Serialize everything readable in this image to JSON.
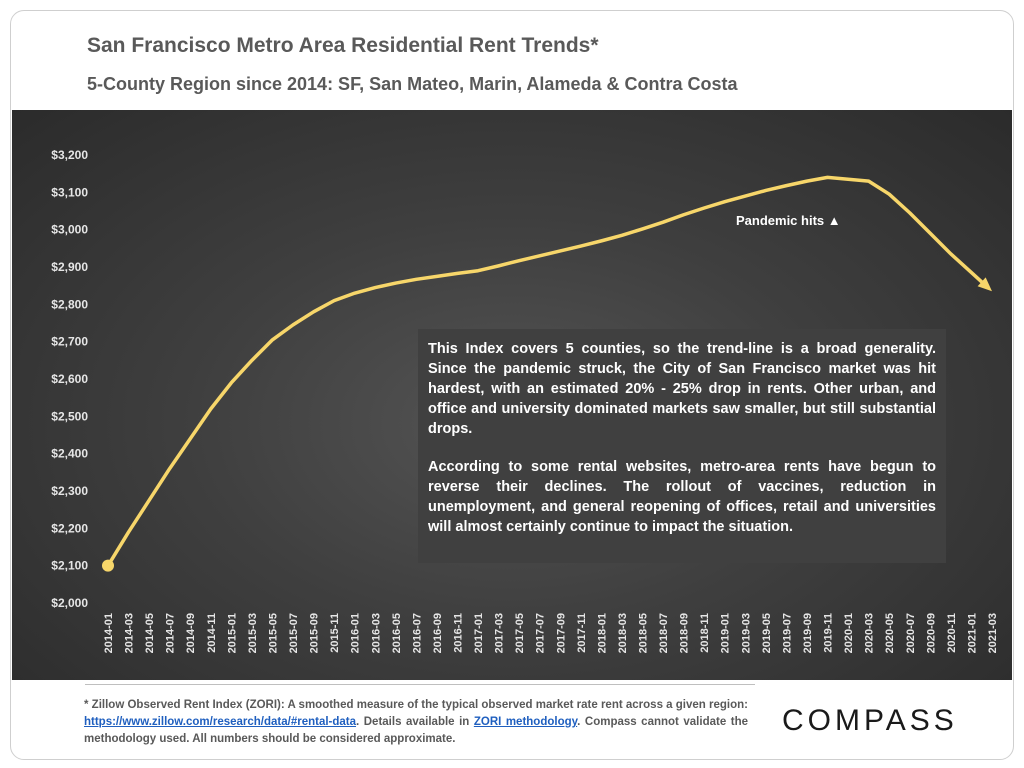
{
  "header": {
    "title": "San Francisco Metro Area Residential Rent Trends*",
    "subtitle": "5-County Region since 2014: SF, San Mateo, Marin, Alameda & Contra Costa"
  },
  "annotation": {
    "pandemic": "Pandemic hits ▲"
  },
  "textbox": {
    "paragraph1": "This Index covers 5 counties, so the trend-line is a broad generality. Since the pandemic struck, the City of San Francisco market was hit hardest, with an estimated 20% - 25% drop in rents. Other urban, and office and university dominated markets saw smaller, but still substantial drops.",
    "paragraph2": "According to some rental websites, metro-area rents have begun to reverse their declines. The rollout of vaccines, reduction in unemployment, and general reopening of offices, retail and universities will almost certainly continue to impact the situation."
  },
  "footer": {
    "note_prefix": "* Zillow Observed Rent Index (ZORI): A smoothed measure of the typical observed market rate rent across a given region: ",
    "link1": "https://www.zillow.com/research/data/#rental-data",
    "note_mid": ". Details available in ",
    "link2": "ZORI methodology",
    "note_suffix": ". Compass cannot validate the methodology used. All numbers should be considered approximate.",
    "logo": "COMPASS"
  },
  "colors": {
    "line": "#f7d66a",
    "panel": "#404040",
    "text": "#595959",
    "link": "#1f5fbf"
  },
  "chart_data": {
    "type": "line",
    "title": "San Francisco Metro Area Residential Rent Trends*",
    "ylim": [
      2000,
      3200
    ],
    "yticks": [
      2000,
      2100,
      2200,
      2300,
      2400,
      2500,
      2600,
      2700,
      2800,
      2900,
      3000,
      3100,
      3200
    ],
    "ytick_labels": [
      "$2,000",
      "$2,100",
      "$2,200",
      "$2,300",
      "$2,400",
      "$2,500",
      "$2,600",
      "$2,700",
      "$2,800",
      "$2,900",
      "$3,000",
      "$3,100",
      "$3,200"
    ],
    "xtick_labels": [
      "2014-01",
      "2014-03",
      "2014-05",
      "2014-07",
      "2014-09",
      "2014-11",
      "2015-01",
      "2015-03",
      "2015-05",
      "2015-07",
      "2015-09",
      "2015-11",
      "2016-01",
      "2016-03",
      "2016-05",
      "2016-07",
      "2016-09",
      "2016-11",
      "2017-01",
      "2017-03",
      "2017-05",
      "2017-07",
      "2017-09",
      "2017-11",
      "2018-01",
      "2018-03",
      "2018-05",
      "2018-07",
      "2018-09",
      "2018-11",
      "2019-01",
      "2019-03",
      "2019-05",
      "2019-07",
      "2019-09",
      "2019-11",
      "2020-01",
      "2020-03",
      "2020-05",
      "2020-07",
      "2020-09",
      "2020-11",
      "2021-01",
      "2021-03"
    ],
    "grid": false,
    "series": [
      {
        "x": [
          "2014-01",
          "2014-03",
          "2014-05",
          "2014-07",
          "2014-09",
          "2014-11",
          "2015-01",
          "2015-03",
          "2015-05",
          "2015-07",
          "2015-09",
          "2015-11",
          "2016-01",
          "2016-03",
          "2016-05",
          "2016-07",
          "2016-09",
          "2016-11",
          "2017-01",
          "2017-03",
          "2017-05",
          "2017-07",
          "2017-09",
          "2017-11",
          "2018-01",
          "2018-03",
          "2018-05",
          "2018-07",
          "2018-09",
          "2018-11",
          "2019-01",
          "2019-03",
          "2019-05",
          "2019-07",
          "2019-09",
          "2019-11",
          "2020-01",
          "2020-03",
          "2020-05",
          "2020-07",
          "2020-09",
          "2020-11",
          "2021-01",
          "2021-03"
        ],
        "values": [
          2100,
          2190,
          2275,
          2360,
          2440,
          2520,
          2590,
          2650,
          2705,
          2745,
          2780,
          2810,
          2830,
          2845,
          2857,
          2867,
          2875,
          2883,
          2890,
          2903,
          2917,
          2930,
          2943,
          2956,
          2970,
          2985,
          3002,
          3020,
          3040,
          3058,
          3075,
          3090,
          3105,
          3118,
          3130,
          3140,
          3135,
          3130,
          3095,
          3045,
          2990,
          2935,
          2885,
          2835
        ]
      }
    ]
  }
}
